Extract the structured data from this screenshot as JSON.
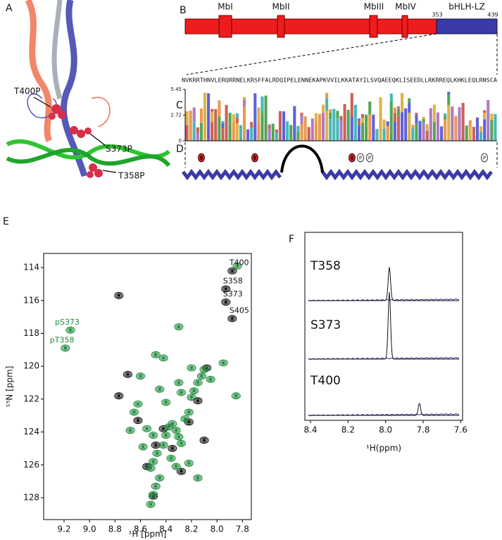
{
  "panels": {
    "A": {
      "label": "A",
      "annotations": [
        "T400P",
        "S373P",
        "T358P"
      ]
    },
    "B": {
      "label": "B",
      "domains": [
        "MbI",
        "MbII",
        "MbIII",
        "MbIV"
      ],
      "region": "bHLH-LZ",
      "start": 353,
      "end": 439
    },
    "C": {
      "label": "C",
      "sequence": "NVKRRTHNVLERQRRNELKRSFFALRDQIPELENNEKAPKVVILKKATAYILSVQAEEQKLISEEDLLRKRREQLKHKLEQLRNSCA",
      "yticks": [
        5.45,
        2.72,
        0
      ]
    },
    "D": {
      "label": "D",
      "marker": "P"
    },
    "E": {
      "label": "E"
    },
    "F": {
      "label": "F"
    }
  },
  "chart_data": [
    {
      "type": "scatter",
      "xlabel": "¹H [ppm]",
      "ylabel": "¹⁵N [ppm]",
      "xlim": [
        9.36,
        7.73
      ],
      "ylim": [
        129.33,
        113.14
      ],
      "xticks": [
        9.2,
        {
          "value": 9,
          "label": "9.0"
        },
        8.8,
        8.6,
        8.4,
        8.2,
        {
          "value": 8,
          "label": "8.0"
        },
        7.8
      ],
      "yticks": [
        114,
        116,
        118,
        120,
        122,
        124,
        126,
        128
      ],
      "series": [
        {
          "color": "#111111",
          "x": [
            8.77,
            8.77,
            8.7,
            8.62,
            8.5,
            8.42,
            8.35,
            8.1,
            8.08,
            8.15,
            8.48,
            8.28,
            8.55,
            8.22
          ],
          "y": [
            115.7,
            121.8,
            120.5,
            123.3,
            127.9,
            123.8,
            125,
            124.5,
            120.1,
            122.1,
            124.8,
            126.4,
            126.1,
            123.4
          ]
        },
        {
          "color": "#1e8a3c",
          "x": [
            8.52,
            8.5,
            8.48,
            8.45,
            8.52,
            8.5,
            8.47,
            8.42,
            8.4,
            8.38,
            8.35,
            8.32,
            8.3,
            8.28,
            8.25,
            8.22,
            8.2,
            8.18,
            8.15,
            8.12,
            8.1,
            8.05,
            8.3,
            8.28,
            8.4,
            8.45,
            8.6,
            8.62,
            8.55,
            8.36,
            8.32,
            8.22,
            8.15,
            8.5,
            8.48,
            8.3,
            8.2,
            7.84,
            7.85,
            7.95,
            8.65,
            8.68,
            8.42,
            8.58
          ],
          "y": [
            128.4,
            127.8,
            127.3,
            126.8,
            126.2,
            125.8,
            125.3,
            124.8,
            124.2,
            123.7,
            123.5,
            123.9,
            124.3,
            124.7,
            123.2,
            122.8,
            121.9,
            121.5,
            121,
            120.6,
            120.2,
            120.8,
            121,
            121.6,
            122.2,
            121.4,
            120.6,
            122.3,
            123.8,
            125.6,
            126.1,
            125.9,
            126.8,
            124.2,
            119.3,
            117.6,
            120.1,
            113.9,
            121.8,
            119.8,
            122.8,
            123.9,
            119.5,
            124.9
          ]
        }
      ],
      "annotations": [
        {
          "text": "T400",
          "x": 7.88,
          "y": 114.2,
          "color": "#111111"
        },
        {
          "text": "S358",
          "x": 7.93,
          "y": 115.3,
          "color": "#111111"
        },
        {
          "text": "S373",
          "x": 7.93,
          "y": 116.1,
          "color": "#111111"
        },
        {
          "text": "S405",
          "x": 7.88,
          "y": 117.1,
          "color": "#111111"
        },
        {
          "text": "pS373",
          "x": 9.15,
          "y": 117.8,
          "color": "#1e8a3c"
        },
        {
          "text": "pT358",
          "x": 9.19,
          "y": 118.9,
          "color": "#1e8a3c"
        }
      ]
    },
    {
      "type": "line",
      "xlabel": "¹H(ppm)",
      "xlim": [
        8.43,
        7.59
      ],
      "xticks": [
        8.4,
        8.2,
        {
          "value": 8,
          "label": "8.0"
        },
        7.8,
        7.6
      ],
      "traces": [
        {
          "name": "T358",
          "peak": 7.98,
          "intensity": 0.5
        },
        {
          "name": "S373",
          "peak": 7.98,
          "intensity": 1
        },
        {
          "name": "T400",
          "peak": 7.82,
          "intensity": 0.18
        }
      ]
    }
  ]
}
